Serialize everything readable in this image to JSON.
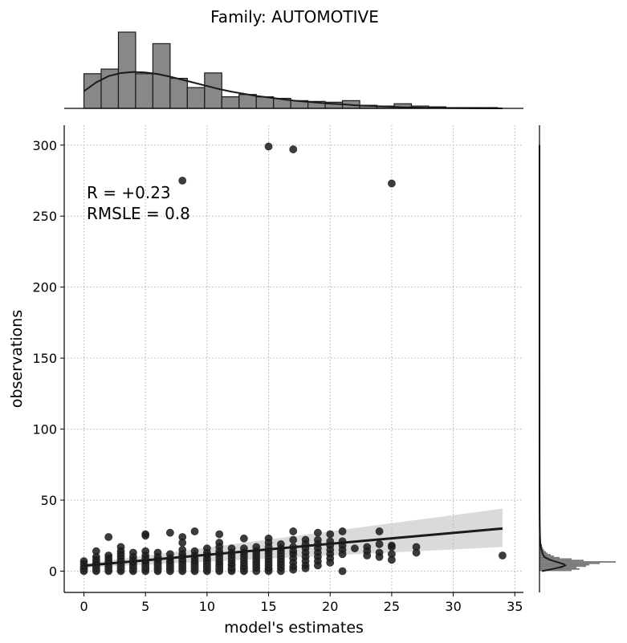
{
  "chart_data": {
    "type": "scatter",
    "title": "Family: AUTOMOTIVE",
    "xlabel": "model's estimates",
    "ylabel": "observations",
    "xlim": [
      -1.6,
      35.7
    ],
    "ylim": [
      -15,
      314
    ],
    "xticks": [
      0,
      5,
      10,
      15,
      20,
      25,
      30,
      35
    ],
    "yticks": [
      0,
      50,
      100,
      150,
      200,
      250,
      300
    ],
    "grid": true,
    "annotations": [
      "R = +0.23",
      "RMSLE =  0.8"
    ],
    "regression": {
      "x": [
        0,
        34
      ],
      "y": [
        3.8,
        30.0
      ],
      "ci_low": [
        2.4,
        17.0
      ],
      "ci_high": [
        5.2,
        44.0
      ]
    },
    "points": [
      {
        "x": 0,
        "y": 0
      },
      {
        "x": 0,
        "y": 1
      },
      {
        "x": 0,
        "y": 2
      },
      {
        "x": 0,
        "y": 3
      },
      {
        "x": 0,
        "y": 5
      },
      {
        "x": 0,
        "y": 7
      },
      {
        "x": 1,
        "y": 0
      },
      {
        "x": 1,
        "y": 1
      },
      {
        "x": 1,
        "y": 2
      },
      {
        "x": 1,
        "y": 3
      },
      {
        "x": 1,
        "y": 4
      },
      {
        "x": 1,
        "y": 5
      },
      {
        "x": 1,
        "y": 6
      },
      {
        "x": 1,
        "y": 8
      },
      {
        "x": 1,
        "y": 10
      },
      {
        "x": 1,
        "y": 14
      },
      {
        "x": 2,
        "y": 0
      },
      {
        "x": 2,
        "y": 1
      },
      {
        "x": 2,
        "y": 2
      },
      {
        "x": 2,
        "y": 3
      },
      {
        "x": 2,
        "y": 4
      },
      {
        "x": 2,
        "y": 5
      },
      {
        "x": 2,
        "y": 6
      },
      {
        "x": 2,
        "y": 7
      },
      {
        "x": 2,
        "y": 9
      },
      {
        "x": 2,
        "y": 11
      },
      {
        "x": 2,
        "y": 24
      },
      {
        "x": 3,
        "y": 0
      },
      {
        "x": 3,
        "y": 1
      },
      {
        "x": 3,
        "y": 2
      },
      {
        "x": 3,
        "y": 3
      },
      {
        "x": 3,
        "y": 4
      },
      {
        "x": 3,
        "y": 5
      },
      {
        "x": 3,
        "y": 6
      },
      {
        "x": 3,
        "y": 7
      },
      {
        "x": 3,
        "y": 8
      },
      {
        "x": 3,
        "y": 10
      },
      {
        "x": 3,
        "y": 12
      },
      {
        "x": 3,
        "y": 14
      },
      {
        "x": 3,
        "y": 17
      },
      {
        "x": 4,
        "y": 0
      },
      {
        "x": 4,
        "y": 1
      },
      {
        "x": 4,
        "y": 2
      },
      {
        "x": 4,
        "y": 3
      },
      {
        "x": 4,
        "y": 4
      },
      {
        "x": 4,
        "y": 5
      },
      {
        "x": 4,
        "y": 6
      },
      {
        "x": 4,
        "y": 8
      },
      {
        "x": 4,
        "y": 10
      },
      {
        "x": 4,
        "y": 13
      },
      {
        "x": 5,
        "y": 0
      },
      {
        "x": 5,
        "y": 1
      },
      {
        "x": 5,
        "y": 2
      },
      {
        "x": 5,
        "y": 3
      },
      {
        "x": 5,
        "y": 4
      },
      {
        "x": 5,
        "y": 5
      },
      {
        "x": 5,
        "y": 6
      },
      {
        "x": 5,
        "y": 7
      },
      {
        "x": 5,
        "y": 9
      },
      {
        "x": 5,
        "y": 11
      },
      {
        "x": 5,
        "y": 14
      },
      {
        "x": 5,
        "y": 25
      },
      {
        "x": 5,
        "y": 26
      },
      {
        "x": 6,
        "y": 0
      },
      {
        "x": 6,
        "y": 1
      },
      {
        "x": 6,
        "y": 2
      },
      {
        "x": 6,
        "y": 3
      },
      {
        "x": 6,
        "y": 4
      },
      {
        "x": 6,
        "y": 5
      },
      {
        "x": 6,
        "y": 6
      },
      {
        "x": 6,
        "y": 7
      },
      {
        "x": 6,
        "y": 8
      },
      {
        "x": 6,
        "y": 10
      },
      {
        "x": 6,
        "y": 13
      },
      {
        "x": 7,
        "y": 0
      },
      {
        "x": 7,
        "y": 1
      },
      {
        "x": 7,
        "y": 2
      },
      {
        "x": 7,
        "y": 3
      },
      {
        "x": 7,
        "y": 4
      },
      {
        "x": 7,
        "y": 5
      },
      {
        "x": 7,
        "y": 6
      },
      {
        "x": 7,
        "y": 7
      },
      {
        "x": 7,
        "y": 9
      },
      {
        "x": 7,
        "y": 12
      },
      {
        "x": 7,
        "y": 27
      },
      {
        "x": 8,
        "y": 0
      },
      {
        "x": 8,
        "y": 1
      },
      {
        "x": 8,
        "y": 2
      },
      {
        "x": 8,
        "y": 3
      },
      {
        "x": 8,
        "y": 4
      },
      {
        "x": 8,
        "y": 5
      },
      {
        "x": 8,
        "y": 6
      },
      {
        "x": 8,
        "y": 7
      },
      {
        "x": 8,
        "y": 8
      },
      {
        "x": 8,
        "y": 10
      },
      {
        "x": 8,
        "y": 12
      },
      {
        "x": 8,
        "y": 15
      },
      {
        "x": 8,
        "y": 20
      },
      {
        "x": 8,
        "y": 24
      },
      {
        "x": 8,
        "y": 275
      },
      {
        "x": 9,
        "y": 0
      },
      {
        "x": 9,
        "y": 1
      },
      {
        "x": 9,
        "y": 2
      },
      {
        "x": 9,
        "y": 3
      },
      {
        "x": 9,
        "y": 4
      },
      {
        "x": 9,
        "y": 5
      },
      {
        "x": 9,
        "y": 6
      },
      {
        "x": 9,
        "y": 7
      },
      {
        "x": 9,
        "y": 9
      },
      {
        "x": 9,
        "y": 11
      },
      {
        "x": 9,
        "y": 14
      },
      {
        "x": 9,
        "y": 28
      },
      {
        "x": 10,
        "y": 0
      },
      {
        "x": 10,
        "y": 1
      },
      {
        "x": 10,
        "y": 2
      },
      {
        "x": 10,
        "y": 3
      },
      {
        "x": 10,
        "y": 4
      },
      {
        "x": 10,
        "y": 5
      },
      {
        "x": 10,
        "y": 6
      },
      {
        "x": 10,
        "y": 7
      },
      {
        "x": 10,
        "y": 8
      },
      {
        "x": 10,
        "y": 9
      },
      {
        "x": 10,
        "y": 11
      },
      {
        "x": 10,
        "y": 13
      },
      {
        "x": 10,
        "y": 16
      },
      {
        "x": 11,
        "y": 0
      },
      {
        "x": 11,
        "y": 1
      },
      {
        "x": 11,
        "y": 2
      },
      {
        "x": 11,
        "y": 3
      },
      {
        "x": 11,
        "y": 4
      },
      {
        "x": 11,
        "y": 5
      },
      {
        "x": 11,
        "y": 6
      },
      {
        "x": 11,
        "y": 8
      },
      {
        "x": 11,
        "y": 10
      },
      {
        "x": 11,
        "y": 12
      },
      {
        "x": 11,
        "y": 14
      },
      {
        "x": 11,
        "y": 17
      },
      {
        "x": 11,
        "y": 20
      },
      {
        "x": 11,
        "y": 26
      },
      {
        "x": 12,
        "y": 0
      },
      {
        "x": 12,
        "y": 1
      },
      {
        "x": 12,
        "y": 2
      },
      {
        "x": 12,
        "y": 4
      },
      {
        "x": 12,
        "y": 5
      },
      {
        "x": 12,
        "y": 7
      },
      {
        "x": 12,
        "y": 9
      },
      {
        "x": 12,
        "y": 11
      },
      {
        "x": 12,
        "y": 13
      },
      {
        "x": 12,
        "y": 16
      },
      {
        "x": 13,
        "y": 0
      },
      {
        "x": 13,
        "y": 1
      },
      {
        "x": 13,
        "y": 2
      },
      {
        "x": 13,
        "y": 3
      },
      {
        "x": 13,
        "y": 5
      },
      {
        "x": 13,
        "y": 7
      },
      {
        "x": 13,
        "y": 9
      },
      {
        "x": 13,
        "y": 11
      },
      {
        "x": 13,
        "y": 13
      },
      {
        "x": 13,
        "y": 16
      },
      {
        "x": 13,
        "y": 23
      },
      {
        "x": 14,
        "y": 0
      },
      {
        "x": 14,
        "y": 2
      },
      {
        "x": 14,
        "y": 4
      },
      {
        "x": 14,
        "y": 6
      },
      {
        "x": 14,
        "y": 8
      },
      {
        "x": 14,
        "y": 10
      },
      {
        "x": 14,
        "y": 12
      },
      {
        "x": 14,
        "y": 14
      },
      {
        "x": 14,
        "y": 17
      },
      {
        "x": 15,
        "y": 0
      },
      {
        "x": 15,
        "y": 1
      },
      {
        "x": 15,
        "y": 2
      },
      {
        "x": 15,
        "y": 4
      },
      {
        "x": 15,
        "y": 6
      },
      {
        "x": 15,
        "y": 8
      },
      {
        "x": 15,
        "y": 10
      },
      {
        "x": 15,
        "y": 12
      },
      {
        "x": 15,
        "y": 14
      },
      {
        "x": 15,
        "y": 17
      },
      {
        "x": 15,
        "y": 20
      },
      {
        "x": 15,
        "y": 23
      },
      {
        "x": 15,
        "y": 299
      },
      {
        "x": 16,
        "y": 0
      },
      {
        "x": 16,
        "y": 2
      },
      {
        "x": 16,
        "y": 4
      },
      {
        "x": 16,
        "y": 6
      },
      {
        "x": 16,
        "y": 8
      },
      {
        "x": 16,
        "y": 10
      },
      {
        "x": 16,
        "y": 12
      },
      {
        "x": 16,
        "y": 14
      },
      {
        "x": 16,
        "y": 16
      },
      {
        "x": 16,
        "y": 19
      },
      {
        "x": 17,
        "y": 1
      },
      {
        "x": 17,
        "y": 3
      },
      {
        "x": 17,
        "y": 6
      },
      {
        "x": 17,
        "y": 9
      },
      {
        "x": 17,
        "y": 12
      },
      {
        "x": 17,
        "y": 14
      },
      {
        "x": 17,
        "y": 17
      },
      {
        "x": 17,
        "y": 22
      },
      {
        "x": 17,
        "y": 28
      },
      {
        "x": 17,
        "y": 297
      },
      {
        "x": 18,
        "y": 2
      },
      {
        "x": 18,
        "y": 4
      },
      {
        "x": 18,
        "y": 7
      },
      {
        "x": 18,
        "y": 10
      },
      {
        "x": 18,
        "y": 13
      },
      {
        "x": 18,
        "y": 16
      },
      {
        "x": 18,
        "y": 19
      },
      {
        "x": 18,
        "y": 22
      },
      {
        "x": 19,
        "y": 4
      },
      {
        "x": 19,
        "y": 7
      },
      {
        "x": 19,
        "y": 10
      },
      {
        "x": 19,
        "y": 13
      },
      {
        "x": 19,
        "y": 16
      },
      {
        "x": 19,
        "y": 19
      },
      {
        "x": 19,
        "y": 22
      },
      {
        "x": 19,
        "y": 27
      },
      {
        "x": 20,
        "y": 6
      },
      {
        "x": 20,
        "y": 9
      },
      {
        "x": 20,
        "y": 12
      },
      {
        "x": 20,
        "y": 15
      },
      {
        "x": 20,
        "y": 18
      },
      {
        "x": 20,
        "y": 21
      },
      {
        "x": 20,
        "y": 26
      },
      {
        "x": 21,
        "y": 0
      },
      {
        "x": 21,
        "y": 12
      },
      {
        "x": 21,
        "y": 15
      },
      {
        "x": 21,
        "y": 18
      },
      {
        "x": 21,
        "y": 21
      },
      {
        "x": 21,
        "y": 28
      },
      {
        "x": 22,
        "y": 16
      },
      {
        "x": 23,
        "y": 11
      },
      {
        "x": 23,
        "y": 14
      },
      {
        "x": 23,
        "y": 17
      },
      {
        "x": 24,
        "y": 10
      },
      {
        "x": 24,
        "y": 13
      },
      {
        "x": 24,
        "y": 19
      },
      {
        "x": 24,
        "y": 28
      },
      {
        "x": 25,
        "y": 8
      },
      {
        "x": 25,
        "y": 12
      },
      {
        "x": 25,
        "y": 17
      },
      {
        "x": 25,
        "y": 18
      },
      {
        "x": 25,
        "y": 273
      },
      {
        "x": 27,
        "y": 13
      },
      {
        "x": 27,
        "y": 17
      },
      {
        "x": 34,
        "y": 11
      }
    ],
    "top_histogram": {
      "bin_edges": [
        0,
        1.4,
        2.8,
        4.2,
        5.6,
        7.0,
        8.4,
        9.8,
        11.2,
        12.6,
        14.0,
        15.4,
        16.8,
        18.2,
        19.6,
        21.0,
        22.4,
        23.8,
        25.2,
        26.6,
        28.0,
        29.4,
        30.8,
        32.2,
        33.6
      ],
      "counts": [
        45,
        51,
        99,
        45,
        84,
        39,
        27,
        46,
        15,
        18,
        15,
        13,
        10,
        9,
        8,
        10,
        4,
        3,
        6,
        3,
        2,
        1,
        1,
        1
      ],
      "kde_x": [
        0,
        1,
        2,
        3,
        4,
        5,
        6,
        7,
        8,
        9,
        10,
        11,
        12,
        13,
        14,
        15,
        16,
        17,
        18,
        19,
        20,
        21,
        22,
        23,
        24,
        25,
        26,
        27,
        28,
        30,
        32,
        34
      ],
      "kde_y": [
        33,
        50,
        62,
        68,
        70,
        69,
        66,
        61,
        55,
        49,
        43,
        37,
        32,
        28,
        24,
        21,
        18,
        15,
        13,
        11,
        9,
        8,
        6,
        5,
        4,
        3,
        2,
        1.5,
        1,
        0.5,
        0.2,
        0
      ]
    },
    "right_histogram": {
      "bin_edges": [
        0,
        1,
        2,
        3,
        4,
        5,
        6,
        7,
        8,
        9,
        10,
        11,
        12,
        13,
        14,
        15,
        16,
        17,
        18,
        19,
        20
      ],
      "counts": [
        40,
        50,
        46,
        58,
        62,
        75,
        95,
        55,
        40,
        25,
        18,
        14,
        10,
        8,
        6,
        5,
        4,
        3,
        3,
        2
      ],
      "kde_y": [
        0,
        1,
        2,
        3,
        4,
        5,
        6,
        7,
        8,
        9,
        10,
        12,
        14,
        16,
        18,
        20,
        25,
        30,
        40,
        60,
        100,
        200,
        300
      ],
      "kde_x": [
        3,
        12,
        20,
        28,
        32,
        30,
        24,
        18,
        13,
        9,
        6,
        4,
        3,
        2,
        1.5,
        1,
        0.6,
        0.4,
        0.2,
        0.1,
        0.05,
        0.02,
        0.01
      ]
    }
  }
}
